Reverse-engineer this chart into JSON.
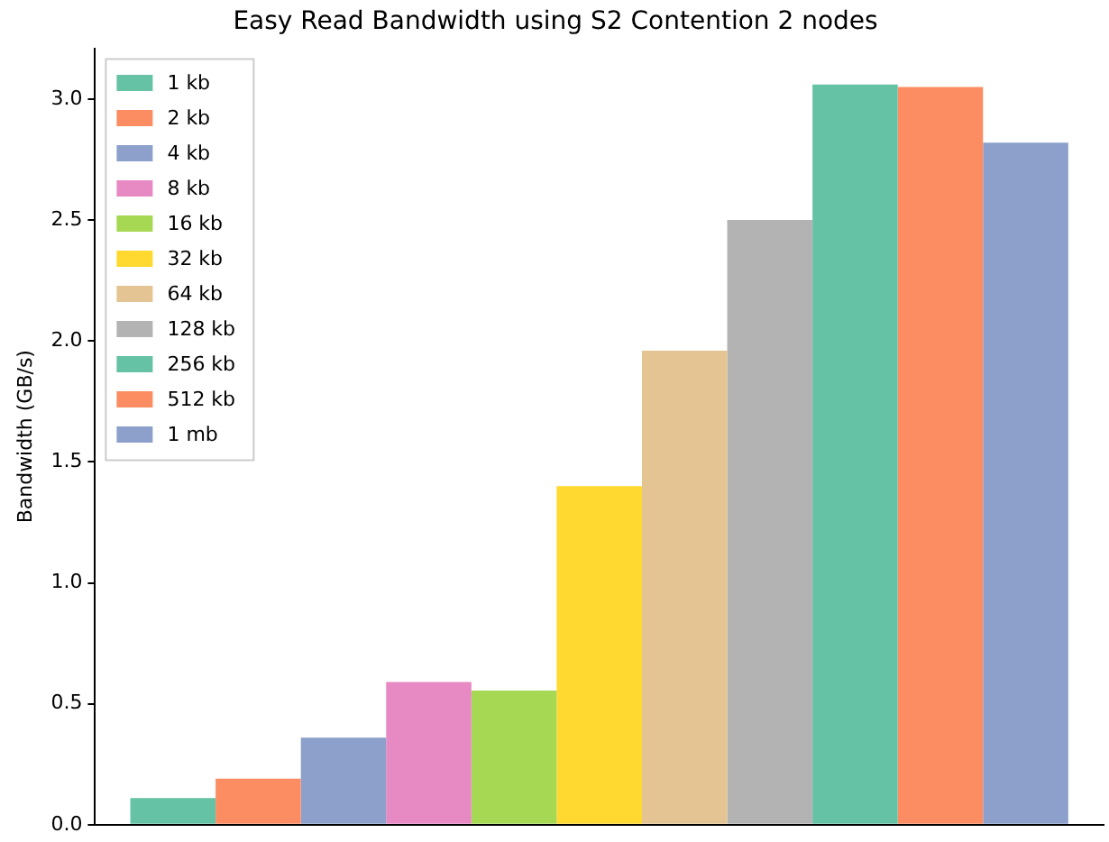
{
  "chart_data": {
    "type": "bar",
    "title": "Easy Read Bandwidth using S2 Contention 2 nodes",
    "ylabel": "Bandwidth (GB/s)",
    "categories": [
      null
    ],
    "series": [
      {
        "name": "1 kb",
        "color": "#66c2a5",
        "values": [
          0.11
        ]
      },
      {
        "name": "2 kb",
        "color": "#fc8d62",
        "values": [
          0.19
        ]
      },
      {
        "name": "4 kb",
        "color": "#8da0cb",
        "values": [
          0.36
        ]
      },
      {
        "name": "8 kb",
        "color": "#e78ac3",
        "values": [
          0.59
        ]
      },
      {
        "name": "16 kb",
        "color": "#a6d854",
        "values": [
          0.555
        ]
      },
      {
        "name": "32 kb",
        "color": "#ffd92f",
        "values": [
          1.4
        ]
      },
      {
        "name": "64 kb",
        "color": "#e5c494",
        "values": [
          1.96
        ]
      },
      {
        "name": "128 kb",
        "color": "#b3b3b3",
        "values": [
          2.5
        ]
      },
      {
        "name": "256 kb",
        "color": "#66c2a5",
        "values": [
          3.06
        ]
      },
      {
        "name": "512 kb",
        "color": "#fc8d62",
        "values": [
          3.05
        ]
      },
      {
        "name": "1 mb",
        "color": "#8da0cb",
        "values": [
          2.82
        ]
      }
    ],
    "ylim": [
      0,
      3.21
    ],
    "yticks": [
      {
        "value": 0,
        "label": "0.0"
      },
      {
        "value": 0.5,
        "label": "0.5"
      },
      {
        "value": 1,
        "label": "1.0"
      },
      {
        "value": 1.5,
        "label": "1.5"
      },
      {
        "value": 2,
        "label": "2.0"
      },
      {
        "value": 2.5,
        "label": "2.5"
      },
      {
        "value": 3,
        "label": "3.0"
      }
    ],
    "grid": false,
    "legend": "top left",
    "tick_labels": "y"
  }
}
